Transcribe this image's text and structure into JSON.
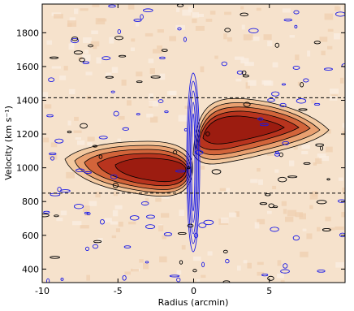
{
  "chart_data": {
    "type": "contour",
    "x_label": "Radius (arcmin)",
    "y_label": "Velocity (km s⁻¹)",
    "xlim": [
      -10,
      10
    ],
    "xticks": [
      -10,
      -5,
      0,
      5
    ],
    "ylim": [
      320,
      1970
    ],
    "yticks": [
      400,
      600,
      800,
      1000,
      1200,
      1400,
      1600,
      1800
    ],
    "reference_lines": [
      1415,
      850
    ]
  }
}
